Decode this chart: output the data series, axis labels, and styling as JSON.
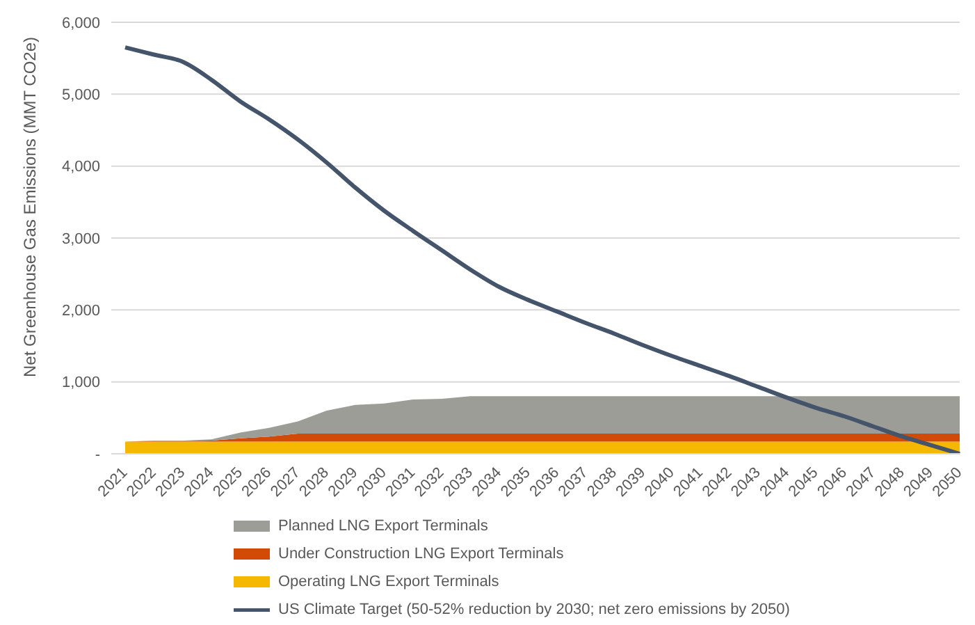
{
  "chart_data": {
    "type": "area",
    "stacked": true,
    "ylabel": "Net Greenhouse Gas Emissions (MMT CO2e)",
    "categories": [
      "2021",
      "2022",
      "2023",
      "2024",
      "2025",
      "2026",
      "2027",
      "2028",
      "2029",
      "2030",
      "2031",
      "2032",
      "2033",
      "2034",
      "2035",
      "2036",
      "2037",
      "2038",
      "2039",
      "2040",
      "2041",
      "2042",
      "2043",
      "2044",
      "2045",
      "2046",
      "2047",
      "2048",
      "2049",
      "2050"
    ],
    "series": [
      {
        "name": "Operating LNG Export Terminals",
        "color": "#f5b800",
        "values": [
          170,
          170,
          170,
          170,
          170,
          170,
          170,
          170,
          170,
          170,
          170,
          170,
          170,
          170,
          170,
          170,
          170,
          170,
          170,
          170,
          170,
          170,
          170,
          170,
          170,
          170,
          170,
          170,
          170,
          170
        ]
      },
      {
        "name": "Under Construction LNG Export Terminals",
        "color": "#d24a08",
        "values": [
          0,
          10,
          10,
          15,
          45,
          70,
          110,
          110,
          110,
          110,
          110,
          110,
          110,
          110,
          110,
          110,
          110,
          110,
          110,
          110,
          110,
          110,
          110,
          110,
          110,
          110,
          110,
          110,
          110,
          110
        ]
      },
      {
        "name": "Planned LNG Export Terminals",
        "color": "#9d9d98",
        "values": [
          0,
          5,
          5,
          15,
          80,
          120,
          170,
          320,
          400,
          420,
          475,
          485,
          520,
          520,
          520,
          520,
          520,
          520,
          520,
          520,
          520,
          520,
          520,
          520,
          520,
          520,
          520,
          520,
          520,
          520
        ]
      },
      {
        "name": "US Climate Target (50-52% reduction by 2030; net zero emissions by 2050)",
        "type": "line",
        "color": "#44546a",
        "values": [
          5650,
          5550,
          5450,
          5200,
          4900,
          4650,
          4370,
          4050,
          3700,
          3380,
          3100,
          2830,
          2560,
          2320,
          2140,
          1980,
          1820,
          1670,
          1510,
          1360,
          1220,
          1080,
          930,
          780,
          640,
          520,
          380,
          240,
          120,
          0
        ]
      }
    ],
    "ylim": [
      0,
      6000
    ],
    "yticks": [
      {
        "value": 0,
        "label": "-"
      },
      {
        "value": 1000,
        "label": "1,000"
      },
      {
        "value": 2000,
        "label": "2,000"
      },
      {
        "value": 3000,
        "label": "3,000"
      },
      {
        "value": 4000,
        "label": "4,000"
      },
      {
        "value": 5000,
        "label": "5,000"
      },
      {
        "value": 6000,
        "label": "6,000"
      }
    ],
    "grid": "y",
    "legend": "bottom"
  }
}
